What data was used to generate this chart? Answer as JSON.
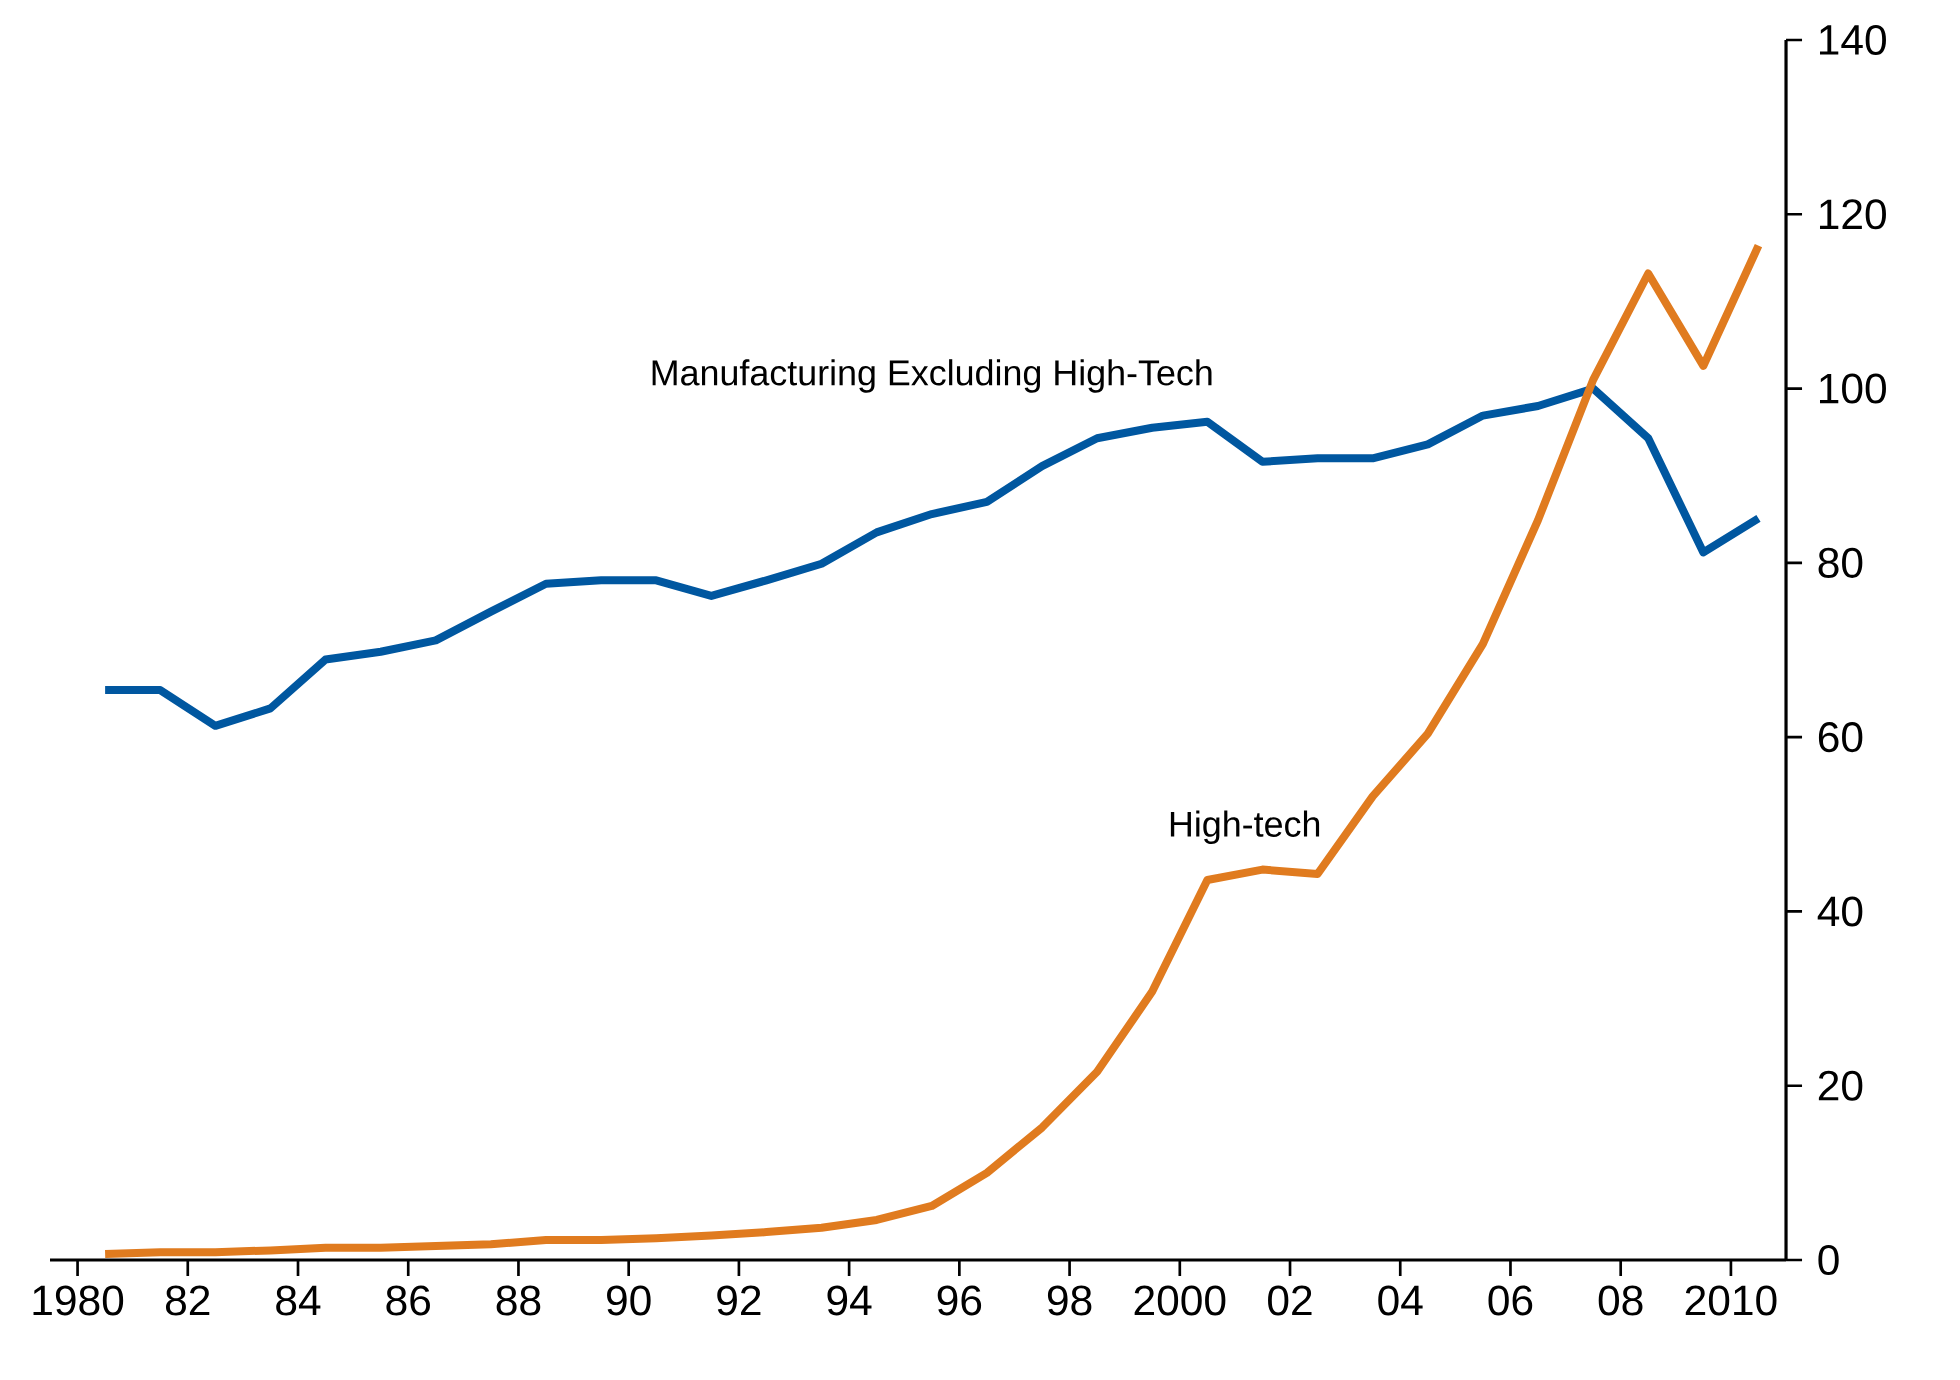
{
  "chart_data": {
    "type": "line",
    "xlim": [
      1979.5,
      2011
    ],
    "ylim": [
      0,
      140
    ],
    "xticks": [
      {
        "value": 1980,
        "label": "1980"
      },
      {
        "value": 1982,
        "label": "82"
      },
      {
        "value": 1984,
        "label": "84"
      },
      {
        "value": 1986,
        "label": "86"
      },
      {
        "value": 1988,
        "label": "88"
      },
      {
        "value": 1990,
        "label": "90"
      },
      {
        "value": 1992,
        "label": "92"
      },
      {
        "value": 1994,
        "label": "94"
      },
      {
        "value": 1996,
        "label": "96"
      },
      {
        "value": 1998,
        "label": "98"
      },
      {
        "value": 2000,
        "label": "2000"
      },
      {
        "value": 2002,
        "label": "02"
      },
      {
        "value": 2004,
        "label": "04"
      },
      {
        "value": 2006,
        "label": "06"
      },
      {
        "value": 2008,
        "label": "08"
      },
      {
        "value": 2010,
        "label": "2010"
      }
    ],
    "yticks": [
      0,
      20,
      40,
      60,
      80,
      100,
      120,
      140
    ],
    "x": [
      1980.5,
      1981.5,
      1982.5,
      1983.5,
      1984.5,
      1985.5,
      1986.5,
      1987.5,
      1988.5,
      1989.5,
      1990.5,
      1991.5,
      1992.5,
      1993.5,
      1994.5,
      1995.5,
      1996.5,
      1997.5,
      1998.5,
      1999.5,
      2000.5,
      2001.5,
      2002.5,
      2003.5,
      2004.5,
      2005.5,
      2006.5,
      2007.5,
      2008.5,
      2009.5,
      2010.5
    ],
    "series": [
      {
        "name": "Manufacturing Excluding High-Tech",
        "color": "#0057a0",
        "values": [
          65.4,
          65.4,
          61.3,
          63.3,
          68.9,
          69.8,
          71.1,
          74.4,
          77.6,
          78.0,
          78.0,
          76.2,
          78.0,
          79.9,
          83.5,
          85.6,
          87.0,
          91.1,
          94.3,
          95.5,
          96.2,
          91.6,
          92.0,
          92.0,
          93.6,
          96.9,
          98.0,
          100.0,
          94.3,
          81.2,
          85.1
        ]
      },
      {
        "name": "High-tech",
        "color": "#e07b1f",
        "values": [
          0.7,
          0.9,
          0.9,
          1.1,
          1.4,
          1.4,
          1.6,
          1.8,
          2.3,
          2.3,
          2.5,
          2.8,
          3.2,
          3.7,
          4.6,
          6.2,
          10.0,
          15.2,
          21.6,
          30.8,
          43.6,
          44.8,
          44.3,
          53.2,
          60.4,
          70.7,
          84.9,
          101.0,
          113.2,
          102.6,
          116.4
        ]
      }
    ],
    "grid": false,
    "legend": false,
    "marker": "none",
    "line_style": "solid"
  }
}
